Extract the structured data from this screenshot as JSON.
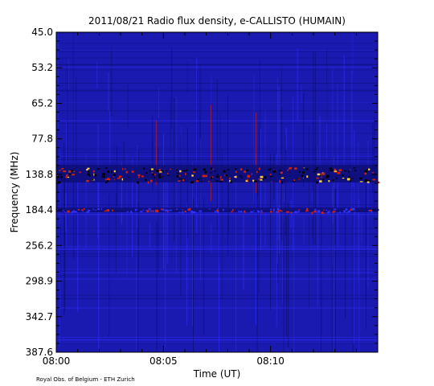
{
  "chart_data": {
    "type": "heatmap",
    "title": "2011/08/21  Radio flux density, e-CALLISTO (HUMAIN)",
    "xlabel": "Time (UT)",
    "ylabel": "Frequency (MHz)",
    "x_ticks": [
      "08:00",
      "08:05",
      "08:10"
    ],
    "x_tick_minutes": [
      0,
      5,
      10
    ],
    "x_range_minutes": [
      0,
      15
    ],
    "y_ticks": [
      "45.0",
      "53.2",
      "65.2",
      "77.8",
      "138.8",
      "184.4",
      "256.2",
      "298.9",
      "342.7",
      "387.6"
    ],
    "y_direction": "top-to-bottom",
    "grid": false,
    "colormap": "blue-to-red-to-yellow",
    "colors": {
      "background": "#1a1ab0",
      "low": "#0d0d70",
      "mid": "#3030ff",
      "high": "#d02010",
      "peak": "#ffd040"
    },
    "features": [
      {
        "label": "interference band",
        "frequency_mhz": 138.8
      },
      {
        "label": "interference band",
        "frequency_mhz": 184.4
      }
    ]
  },
  "credit": "Royal Obs. of Belgium - ETH Zurich"
}
